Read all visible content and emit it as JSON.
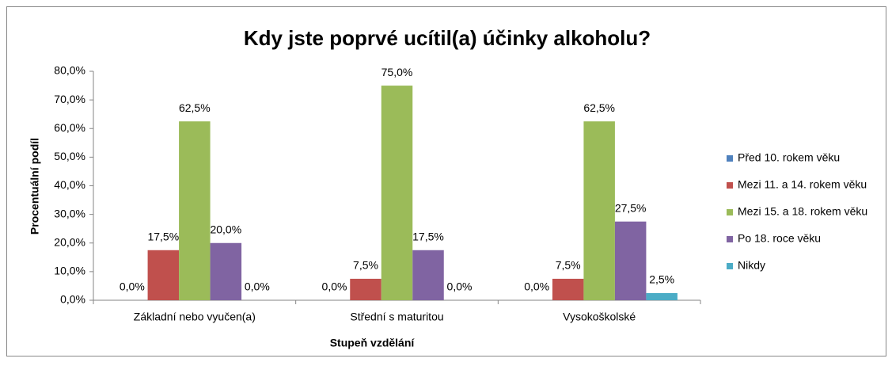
{
  "chart_data": {
    "type": "bar",
    "title": "Kdy jste poprvé ucítil(a) účinky alkoholu?",
    "x_label": "Stupeň vzdělání",
    "y_label": "Procentuální podíl",
    "categories": [
      "Základní nebo vyučen(a)",
      "Střední s maturitou",
      "Vysokoškolské"
    ],
    "series": [
      {
        "name": "Před 10. rokem věku",
        "color": "#4f81bd",
        "values": [
          0,
          0,
          0
        ],
        "value_labels": [
          "0,0%",
          "0,0%",
          "0,0%"
        ]
      },
      {
        "name": "Mezi 11. a 14. rokem věku",
        "color": "#c0504d",
        "values": [
          17.5,
          7.5,
          7.5
        ],
        "value_labels": [
          "17,5%",
          "7,5%",
          "7,5%"
        ]
      },
      {
        "name": "Mezi 15. a 18. rokem věku",
        "color": "#9bbb59",
        "values": [
          62.5,
          75,
          62.5
        ],
        "value_labels": [
          "62,5%",
          "75,0%",
          "62,5%"
        ]
      },
      {
        "name": "Po 18. roce věku",
        "color": "#8064a2",
        "values": [
          20,
          17.5,
          27.5
        ],
        "value_labels": [
          "20,0%",
          "17,5%",
          "27,5%"
        ]
      },
      {
        "name": "Nikdy",
        "color": "#4bacc6",
        "values": [
          0,
          0,
          2.5
        ],
        "value_labels": [
          "0,0%",
          "0,0%",
          "2,5%"
        ]
      }
    ],
    "ylim": [
      0,
      80
    ],
    "yticks": [
      {
        "value": 0,
        "label": "0,0%"
      },
      {
        "value": 10,
        "label": "10,0%"
      },
      {
        "value": 20,
        "label": "20,0%"
      },
      {
        "value": 30,
        "label": "30,0%"
      },
      {
        "value": 40,
        "label": "40,0%"
      },
      {
        "value": 50,
        "label": "50,0%"
      },
      {
        "value": 60,
        "label": "60,0%"
      },
      {
        "value": 70,
        "label": "70,0%"
      },
      {
        "value": 80,
        "label": "80,0%"
      }
    ],
    "legend": "right"
  }
}
